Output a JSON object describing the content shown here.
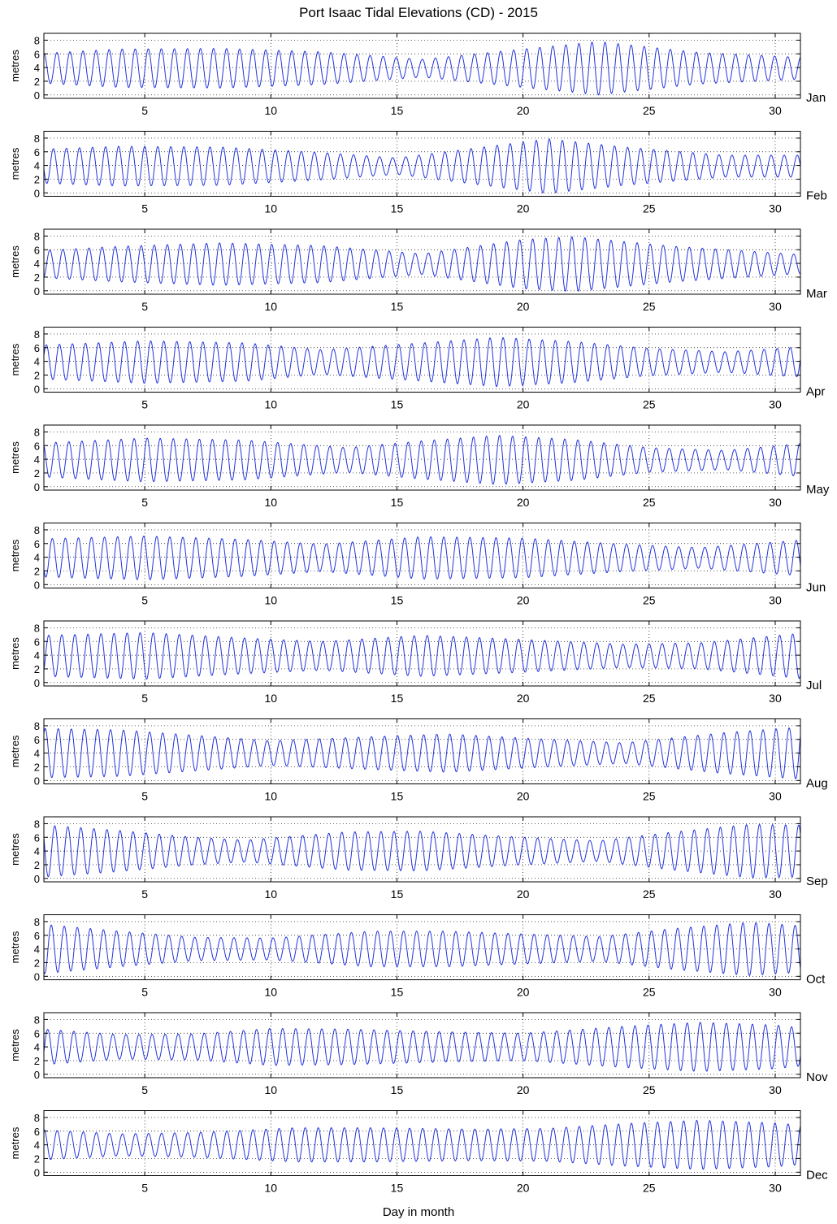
{
  "chart_data": {
    "type": "line",
    "title": "Port Isaac Tidal Elevations (CD) - 2015",
    "xlabel": "Day in month",
    "ylabel": "metres",
    "xlim": [
      1,
      31
    ],
    "ylim": [
      -0.5,
      9
    ],
    "x_ticks": [
      5,
      10,
      15,
      20,
      25,
      30
    ],
    "y_ticks": [
      0,
      2,
      4,
      6,
      8
    ],
    "grid": true,
    "grid_style": "dotted",
    "line_color": "#2233dd",
    "tide_period_hours": 12.42,
    "months": [
      {
        "label": "Jan",
        "mean": 3.9,
        "amp_by_day": [
          [
            1,
            2.2
          ],
          [
            4,
            2.8
          ],
          [
            8,
            2.9
          ],
          [
            12,
            2.4
          ],
          [
            16,
            1.3
          ],
          [
            20,
            2.8
          ],
          [
            23,
            3.9
          ],
          [
            27,
            2.3
          ],
          [
            31,
            1.6
          ]
        ]
      },
      {
        "label": "Feb",
        "mean": 3.9,
        "amp_by_day": [
          [
            1,
            2.5
          ],
          [
            4,
            2.9
          ],
          [
            8,
            2.8
          ],
          [
            12,
            2.0
          ],
          [
            15,
            1.2
          ],
          [
            18,
            2.6
          ],
          [
            21,
            4.0
          ],
          [
            24,
            2.8
          ],
          [
            28,
            1.6
          ]
        ]
      },
      {
        "label": "Mar",
        "mean": 3.9,
        "amp_by_day": [
          [
            1,
            2.0
          ],
          [
            4,
            2.6
          ],
          [
            8,
            3.1
          ],
          [
            12,
            2.7
          ],
          [
            16,
            1.5
          ],
          [
            20,
            3.6
          ],
          [
            22,
            4.0
          ],
          [
            26,
            2.6
          ],
          [
            31,
            1.4
          ]
        ]
      },
      {
        "label": "Apr",
        "mean": 3.9,
        "amp_by_day": [
          [
            1,
            2.5
          ],
          [
            5,
            3.1
          ],
          [
            9,
            2.8
          ],
          [
            12,
            1.8
          ],
          [
            16,
            2.8
          ],
          [
            19,
            3.6
          ],
          [
            22,
            3.0
          ],
          [
            25,
            2.0
          ],
          [
            28,
            1.5
          ],
          [
            31,
            2.2
          ]
        ]
      },
      {
        "label": "May",
        "mean": 3.9,
        "amp_by_day": [
          [
            1,
            2.5
          ],
          [
            5,
            3.2
          ],
          [
            9,
            2.9
          ],
          [
            13,
            1.8
          ],
          [
            16,
            2.8
          ],
          [
            19,
            3.6
          ],
          [
            22,
            3.0
          ],
          [
            25,
            1.8
          ],
          [
            28,
            1.4
          ],
          [
            31,
            2.4
          ]
        ]
      },
      {
        "label": "Jun",
        "mean": 3.9,
        "amp_by_day": [
          [
            1,
            2.8
          ],
          [
            5,
            3.2
          ],
          [
            9,
            2.7
          ],
          [
            12,
            2.0
          ],
          [
            16,
            3.1
          ],
          [
            20,
            2.9
          ],
          [
            24,
            2.0
          ],
          [
            27,
            1.5
          ],
          [
            31,
            2.6
          ]
        ]
      },
      {
        "label": "Jul",
        "mean": 3.9,
        "amp_by_day": [
          [
            1,
            3.0
          ],
          [
            5,
            3.4
          ],
          [
            9,
            2.6
          ],
          [
            12,
            2.1
          ],
          [
            16,
            3.0
          ],
          [
            20,
            2.4
          ],
          [
            24,
            1.7
          ],
          [
            27,
            1.9
          ],
          [
            31,
            3.3
          ]
        ]
      },
      {
        "label": "Aug",
        "mean": 4.0,
        "amp_by_day": [
          [
            1,
            3.6
          ],
          [
            4,
            3.4
          ],
          [
            7,
            2.6
          ],
          [
            10,
            1.8
          ],
          [
            14,
            2.4
          ],
          [
            17,
            2.8
          ],
          [
            20,
            2.2
          ],
          [
            24,
            1.5
          ],
          [
            28,
            3.0
          ],
          [
            31,
            3.8
          ]
        ]
      },
      {
        "label": "Sep",
        "mean": 4.0,
        "amp_by_day": [
          [
            1,
            3.8
          ],
          [
            4,
            3.0
          ],
          [
            7,
            2.0
          ],
          [
            9,
            1.6
          ],
          [
            13,
            2.8
          ],
          [
            16,
            2.9
          ],
          [
            20,
            2.0
          ],
          [
            23,
            1.5
          ],
          [
            26,
            2.8
          ],
          [
            29,
            3.9
          ],
          [
            31,
            3.8
          ]
        ]
      },
      {
        "label": "Oct",
        "mean": 4.0,
        "amp_by_day": [
          [
            1,
            3.6
          ],
          [
            4,
            2.6
          ],
          [
            7,
            1.7
          ],
          [
            10,
            1.6
          ],
          [
            14,
            2.6
          ],
          [
            17,
            2.6
          ],
          [
            20,
            2.2
          ],
          [
            23,
            1.8
          ],
          [
            26,
            3.0
          ],
          [
            29,
            3.9
          ],
          [
            31,
            3.4
          ]
        ]
      },
      {
        "label": "Nov",
        "mean": 4.0,
        "amp_by_day": [
          [
            1,
            2.6
          ],
          [
            4,
            1.8
          ],
          [
            7,
            1.9
          ],
          [
            10,
            2.7
          ],
          [
            13,
            2.6
          ],
          [
            17,
            2.2
          ],
          [
            20,
            2.0
          ],
          [
            24,
            3.0
          ],
          [
            27,
            3.6
          ],
          [
            30,
            3.2
          ],
          [
            31,
            2.8
          ]
        ]
      },
      {
        "label": "Dec",
        "mean": 4.0,
        "amp_by_day": [
          [
            1,
            2.2
          ],
          [
            4,
            1.6
          ],
          [
            7,
            1.8
          ],
          [
            11,
            2.5
          ],
          [
            14,
            2.5
          ],
          [
            18,
            2.3
          ],
          [
            21,
            2.4
          ],
          [
            24,
            3.1
          ],
          [
            27,
            3.6
          ],
          [
            30,
            3.2
          ],
          [
            31,
            2.9
          ]
        ]
      }
    ]
  }
}
